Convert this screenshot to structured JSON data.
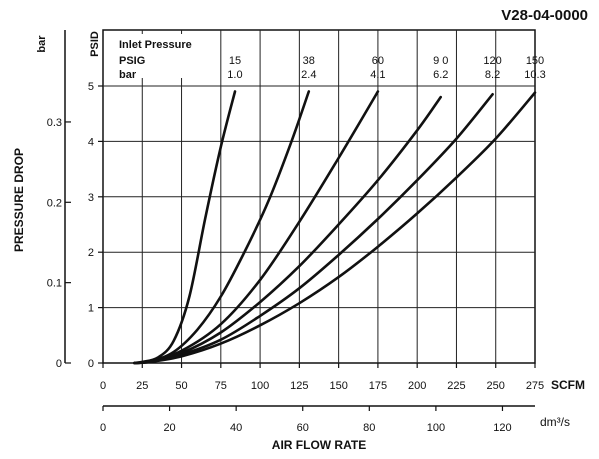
{
  "chart_data": {
    "type": "line",
    "part_number": "V28-04-0000",
    "ylabel": "PRESSURE DROP",
    "xlabel": "AIR FLOW RATE",
    "y_left_unit": "bar",
    "y_right_unit": "PSID",
    "x_top_unit": "SCFM",
    "x_bottom_unit": "dm³/s",
    "legend": {
      "title": "Inlet Pressure",
      "row1_label": "PSIG",
      "row2_label": "bar"
    },
    "xlim_scfm": [
      0,
      275
    ],
    "ylim_psid": [
      0,
      5
    ],
    "xticks_scfm": [
      "0",
      "25",
      "50",
      "75",
      "100",
      "125",
      "150",
      "175",
      "200",
      "225",
      "250",
      "275"
    ],
    "yticks_psid": [
      "0",
      "1",
      "2",
      "3",
      "4",
      "5"
    ],
    "yticks_bar": [
      "0",
      "0.1",
      "0.2",
      "0.3"
    ],
    "xticks_dm3s": [
      "0",
      "20",
      "40",
      "60",
      "80",
      "100",
      "120"
    ],
    "grid": true,
    "series": [
      {
        "psig_label": "15",
        "bar_label": "1.0",
        "x": [
          20,
          25,
          35,
          45,
          55,
          65,
          75,
          84
        ],
        "y": [
          0,
          0.02,
          0.1,
          0.4,
          1.2,
          2.6,
          3.9,
          4.9
        ]
      },
      {
        "psig_label": "38",
        "bar_label": "2.4",
        "x": [
          20,
          30,
          45,
          60,
          75,
          90,
          105,
          120,
          131
        ],
        "y": [
          0,
          0.03,
          0.2,
          0.6,
          1.2,
          2.0,
          2.9,
          4.0,
          4.9
        ]
      },
      {
        "psig_label": "60",
        "bar_label": "4.1",
        "x": [
          20,
          30,
          50,
          75,
          100,
          125,
          150,
          175
        ],
        "y": [
          0,
          0.03,
          0.22,
          0.7,
          1.5,
          2.55,
          3.7,
          4.9
        ]
      },
      {
        "psig_label": "9 0",
        "bar_label": "6.2",
        "x": [
          20,
          30,
          50,
          75,
          100,
          125,
          150,
          175,
          200,
          215
        ],
        "y": [
          0,
          0.03,
          0.18,
          0.55,
          1.1,
          1.75,
          2.5,
          3.3,
          4.2,
          4.8
        ]
      },
      {
        "psig_label": "120",
        "bar_label": "8.2",
        "x": [
          20,
          30,
          50,
          75,
          100,
          125,
          150,
          175,
          200,
          225,
          248
        ],
        "y": [
          0,
          0.02,
          0.15,
          0.42,
          0.85,
          1.35,
          1.95,
          2.6,
          3.3,
          4.05,
          4.85
        ]
      },
      {
        "psig_label": "150",
        "bar_label": "10.3",
        "x": [
          20,
          30,
          50,
          75,
          100,
          125,
          150,
          175,
          200,
          225,
          250,
          275
        ],
        "y": [
          0,
          0.02,
          0.12,
          0.35,
          0.68,
          1.08,
          1.55,
          2.1,
          2.7,
          3.35,
          4.05,
          4.88
        ]
      }
    ]
  }
}
